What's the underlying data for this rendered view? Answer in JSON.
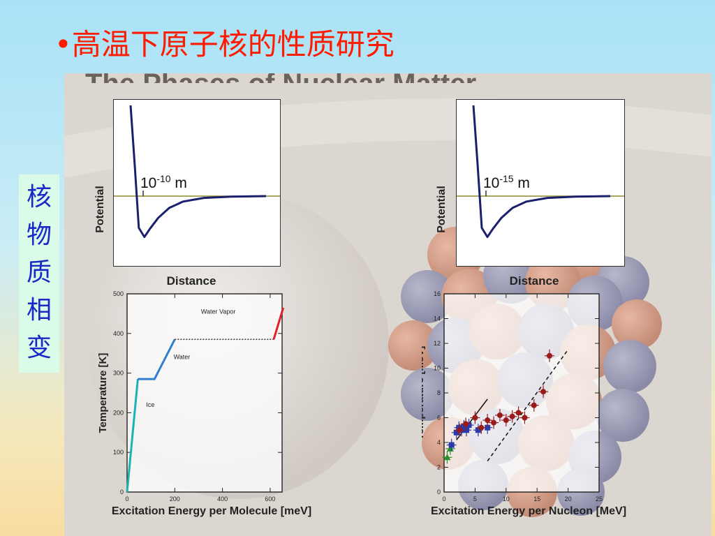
{
  "slide_title": "•高温下原子核的性质研究",
  "side_label": [
    "核",
    "物",
    "质",
    "相",
    "变"
  ],
  "figure_header": "The Phases of Nuclear Matter",
  "chart_data": [
    {
      "type": "line",
      "panel": "top-left",
      "xlabel": "Distance",
      "ylabel": "Potential",
      "annotation": "10-10 m",
      "annotation_base": "10",
      "annotation_exp": "-10",
      "annotation_unit": " m",
      "curve_color": "#1a1f6e",
      "baseline_color": "#8a8a2a",
      "series": [
        {
          "x": [
            0.02,
            0.05,
            0.08,
            0.12,
            0.16,
            0.22,
            0.3,
            0.4,
            0.55,
            0.75,
            1.0
          ],
          "y": [
            1.0,
            0.35,
            -0.35,
            -0.45,
            -0.36,
            -0.24,
            -0.13,
            -0.06,
            -0.02,
            -0.005,
            0
          ]
        }
      ]
    },
    {
      "type": "line",
      "panel": "top-right",
      "xlabel": "Distance",
      "ylabel": "Potential",
      "annotation": "10-15 m",
      "annotation_base": "10",
      "annotation_exp": "-15",
      "annotation_unit": " m",
      "curve_color": "#1a1f6e",
      "baseline_color": "#8a8a2a",
      "series": [
        {
          "x": [
            0.02,
            0.05,
            0.08,
            0.12,
            0.16,
            0.22,
            0.3,
            0.4,
            0.55,
            0.75,
            1.0
          ],
          "y": [
            1.0,
            0.35,
            -0.35,
            -0.45,
            -0.36,
            -0.24,
            -0.13,
            -0.06,
            -0.02,
            -0.005,
            0
          ]
        }
      ]
    },
    {
      "type": "line",
      "panel": "bottom-left",
      "xlabel": "Excitation Energy per Molecule [meV]",
      "ylabel": "Temperature [K]",
      "xlim": [
        0,
        650
      ],
      "ylim": [
        0,
        500
      ],
      "xticks": [
        0,
        200,
        400,
        600
      ],
      "yticks": [
        0,
        100,
        200,
        300,
        400,
        500
      ],
      "annotations": [
        {
          "text": "Ice",
          "x": 80,
          "y": 215
        },
        {
          "text": "Water",
          "x": 195,
          "y": 335
        },
        {
          "text": "Water Vapor",
          "x": 310,
          "y": 450
        }
      ],
      "series": [
        {
          "color": "#19b3b3",
          "x": [
            0,
            45
          ],
          "y": [
            0,
            285
          ],
          "style": "solid"
        },
        {
          "color": "#2f7fd0",
          "x": [
            45,
            115,
            200
          ],
          "y": [
            285,
            285,
            385
          ],
          "style": "solid"
        },
        {
          "color": "#333333",
          "x": [
            200,
            615
          ],
          "y": [
            385,
            385
          ],
          "style": "dotted"
        },
        {
          "color": "#e0202a",
          "x": [
            615,
            655
          ],
          "y": [
            385,
            465
          ],
          "style": "solid"
        }
      ]
    },
    {
      "type": "scatter",
      "panel": "bottom-right",
      "xlabel": "Excitation Energy per Nucleon [MeV]",
      "ylabel": "Temperature [MeV]",
      "xlim": [
        0,
        25
      ],
      "ylim": [
        0,
        16
      ],
      "xticks": [
        0,
        5,
        10,
        15,
        20,
        25
      ],
      "yticks": [
        0,
        2,
        4,
        6,
        8,
        10,
        12,
        14,
        16
      ],
      "series": [
        {
          "color": "#2a8f2a",
          "marker": "triangle",
          "x": [
            0.5,
            1.0
          ],
          "y": [
            2.8,
            3.5
          ]
        },
        {
          "color": "#2a3aa8",
          "marker": "square",
          "x": [
            1.2,
            2.0,
            2.4,
            2.8,
            3.2,
            3.6,
            4.0,
            5.5,
            7.0
          ],
          "y": [
            3.8,
            4.8,
            5.2,
            5.0,
            5.3,
            5.0,
            5.4,
            5.0,
            5.2
          ]
        },
        {
          "color": "#9a1a1a",
          "marker": "circle",
          "x": [
            2.5,
            3.5,
            5.0,
            6.0,
            7.0,
            8.0,
            9.0,
            10.0,
            11.0,
            12.0,
            13.0,
            14.5,
            16.0,
            17.0
          ],
          "y": [
            5.0,
            5.5,
            6.0,
            5.2,
            5.8,
            5.6,
            6.2,
            5.8,
            6.1,
            6.4,
            6.0,
            7.0,
            8.1,
            11.0
          ]
        }
      ],
      "fit_lines": [
        {
          "style": "solid",
          "x": [
            2,
            7
          ],
          "y": [
            4.2,
            7.5
          ]
        },
        {
          "style": "dashed",
          "x": [
            7,
            20
          ],
          "y": [
            2.5,
            11.5
          ]
        }
      ]
    }
  ]
}
